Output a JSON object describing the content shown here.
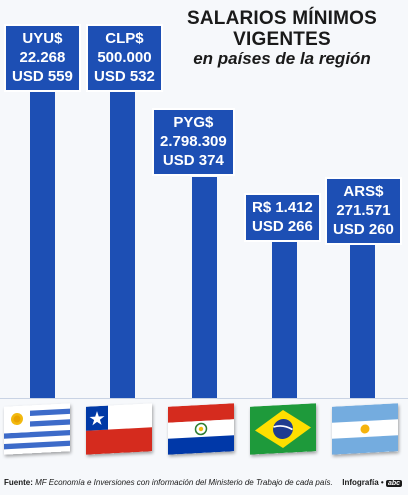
{
  "title": {
    "line1": "SALARIOS MÍNIMOS",
    "line2": "VIGENTES",
    "line3": "en países de la región"
  },
  "chart_data": {
    "type": "bar",
    "categories": [
      "Uruguay",
      "Chile",
      "Paraguay",
      "Brasil",
      "Argentina"
    ],
    "values": [
      559,
      532,
      374,
      266,
      260
    ],
    "unit": "USD",
    "local_amounts": [
      {
        "currency": "UYU$",
        "amount": "22.268",
        "usd": "USD 559"
      },
      {
        "currency": "CLP$",
        "amount": "500.000",
        "usd": "USD 532"
      },
      {
        "currency": "PYG$",
        "amount": "2.798.309",
        "usd": "USD 374"
      },
      {
        "currency": "R$",
        "amount": "1.412",
        "usd": "USD 266"
      },
      {
        "currency": "ARS$",
        "amount": "271.571",
        "usd": "USD 260"
      }
    ],
    "ylim": [
      0,
      600
    ],
    "grid": false,
    "legend": "none"
  },
  "labels": {
    "uy_line1": "UYU$",
    "uy_line2": "22.268",
    "uy_line3": "USD 559",
    "cl_line1": "CLP$",
    "cl_line2": "500.000",
    "cl_line3": "USD 532",
    "py_line1": "PYG$",
    "py_line2": "2.798.309",
    "py_line3": "USD 374",
    "br_line1": "R$ 1.412",
    "br_line2": "USD 266",
    "ar_line1": "ARS$",
    "ar_line2": "271.571",
    "ar_line3": "USD 260"
  },
  "flags": [
    "uruguay-flag-icon",
    "chile-flag-icon",
    "paraguay-flag-icon",
    "brazil-flag-icon",
    "argentina-flag-icon"
  ],
  "colors": {
    "bar": "#1d4fb4",
    "background": "#f6f8fb"
  },
  "footer": {
    "source_label": "Fuente:",
    "source_text": "MF Economía e Inversiones con información del Ministerio de Trabajo de cada país.",
    "credit": "Infografía •",
    "logo": "abc"
  }
}
